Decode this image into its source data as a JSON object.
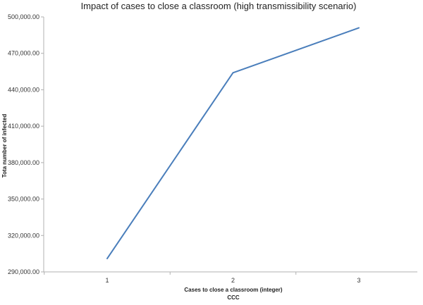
{
  "chart_data": {
    "type": "line",
    "title": "Impact of cases to close a classroom (high transmissibility scenario)",
    "xlabel": "Cases to close a classroom (integer)",
    "xlabel_sub": "CCC",
    "ylabel": "Tota number of infected",
    "categories": [
      "1",
      "2",
      "3"
    ],
    "x": [
      1,
      2,
      3
    ],
    "ylim": [
      290000,
      500000
    ],
    "yticks": [
      290000,
      320000,
      350000,
      380000,
      410000,
      440000,
      470000,
      500000
    ],
    "ytick_labels": [
      "290,000.00",
      "320,000.00",
      "350,000.00",
      "380,000.00",
      "410,000.00",
      "440,000.00",
      "470,000.00",
      "500,000.00"
    ],
    "grid": false,
    "legend": "none",
    "series": [
      {
        "values": [
          301000,
          454000,
          491000
        ],
        "color": "#4a7ebb"
      }
    ]
  }
}
